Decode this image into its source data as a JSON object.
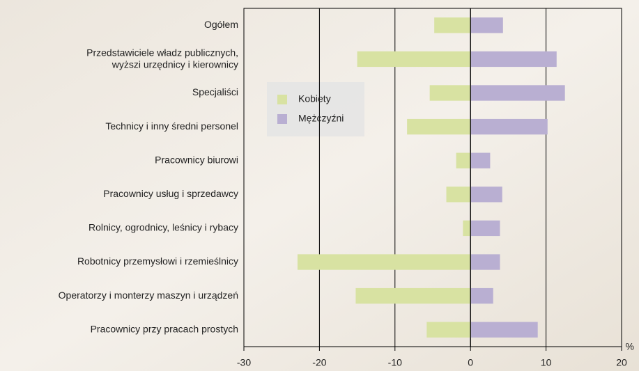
{
  "chart_data": {
    "type": "hbar_diverging",
    "categories": [
      "Ogółem",
      "Przedstawiciele władz publicznych,\nwyższi urzędnicy i kierownicy",
      "Specjaliści",
      "Technicy i inny średni personel",
      "Pracownicy biurowi",
      "Pracownicy usług i sprzedawcy",
      "Rolnicy, ogrodnicy, leśnicy i rybacy",
      "Robotnicy przemysłowi i rzemieślnicy",
      "Operatorzy i monterzy maszyn i urządzeń",
      "Pracownicy przy pracach prostych"
    ],
    "series": [
      {
        "name": "Kobiety",
        "color": "#d8e2a2",
        "values": [
          -4.8,
          -15,
          -5.4,
          -8.4,
          -1.9,
          -3.2,
          -1.0,
          -22.9,
          -15.2,
          -5.8
        ]
      },
      {
        "name": "Mężczyźni",
        "color": "#b9afd2",
        "values": [
          4.3,
          11.4,
          12.5,
          10.2,
          2.6,
          4.2,
          3.9,
          3.9,
          3.0,
          8.9
        ]
      }
    ],
    "x_label": "%",
    "xlim": [
      -30,
      20
    ],
    "xticks": [
      -30,
      -20,
      -10,
      0,
      10,
      20
    ],
    "grid": true
  }
}
